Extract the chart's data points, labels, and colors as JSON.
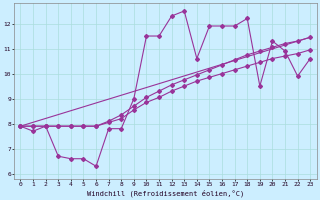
{
  "xlabel": "Windchill (Refroidissement éolien,°C)",
  "background_color": "#cceeff",
  "line_color": "#993399",
  "grid_color": "#aadddd",
  "xlim": [
    -0.5,
    23.5
  ],
  "ylim": [
    5.8,
    12.8
  ],
  "yticks": [
    6,
    7,
    8,
    9,
    10,
    11,
    12
  ],
  "xticks": [
    0,
    1,
    2,
    3,
    4,
    5,
    6,
    7,
    8,
    9,
    10,
    11,
    12,
    13,
    14,
    15,
    16,
    17,
    18,
    19,
    20,
    21,
    22,
    23
  ],
  "line1_x": [
    0,
    1,
    2,
    3,
    4,
    5,
    6,
    7,
    8,
    9,
    10,
    11,
    12,
    13,
    14,
    15,
    16,
    17,
    18,
    19,
    20,
    21,
    22,
    23
  ],
  "line1_y": [
    7.9,
    7.7,
    7.9,
    6.7,
    6.6,
    6.6,
    6.3,
    7.8,
    7.8,
    9.0,
    11.5,
    11.5,
    12.3,
    12.5,
    10.6,
    11.9,
    11.9,
    11.9,
    12.2,
    9.5,
    11.3,
    10.9,
    9.9,
    10.6
  ],
  "line2_x": [
    0,
    1,
    2,
    3,
    4,
    5,
    6,
    7,
    8,
    9,
    10,
    11,
    12,
    13,
    14,
    15,
    16,
    17,
    18,
    19,
    20,
    21,
    22,
    23
  ],
  "line2_y": [
    7.9,
    7.9,
    7.9,
    7.9,
    7.9,
    7.9,
    7.9,
    8.05,
    8.2,
    8.55,
    8.85,
    9.05,
    9.3,
    9.5,
    9.7,
    9.85,
    10.0,
    10.15,
    10.3,
    10.45,
    10.6,
    10.7,
    10.8,
    10.95
  ],
  "line3_x": [
    0,
    1,
    2,
    3,
    4,
    5,
    6,
    7,
    8,
    9,
    10,
    11,
    12,
    13,
    14,
    15,
    16,
    17,
    18,
    19,
    20,
    21,
    22,
    23
  ],
  "line3_y": [
    7.9,
    7.9,
    7.9,
    7.9,
    7.9,
    7.9,
    7.9,
    8.1,
    8.35,
    8.7,
    9.05,
    9.3,
    9.55,
    9.75,
    9.95,
    10.15,
    10.35,
    10.55,
    10.75,
    10.9,
    11.05,
    11.2,
    11.3,
    11.45
  ],
  "line4_x": [
    0,
    23
  ],
  "line4_y": [
    7.9,
    11.45
  ]
}
